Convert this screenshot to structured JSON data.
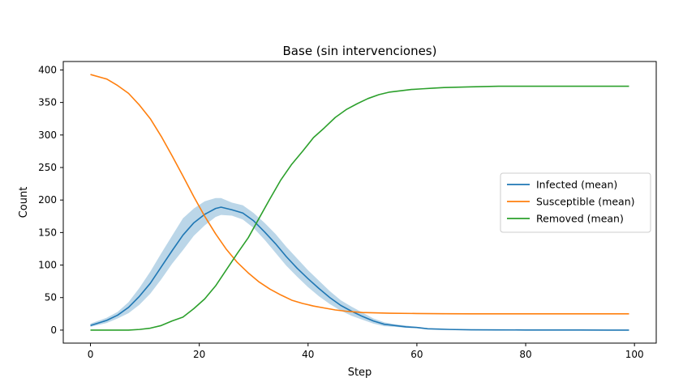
{
  "chart_data": {
    "type": "line",
    "title": "Base (sin intervenciones)",
    "xlabel": "Step",
    "ylabel": "Count",
    "xlim": [
      -5,
      104
    ],
    "ylim": [
      -20,
      413
    ],
    "xticks": [
      0,
      20,
      40,
      60,
      80,
      100
    ],
    "yticks": [
      0,
      50,
      100,
      150,
      200,
      250,
      300,
      350,
      400
    ],
    "grid": false,
    "legend_position": "center-right",
    "series": [
      {
        "name": "Infected (mean)",
        "color": "#1f77b4",
        "x": [
          0,
          3,
          5,
          7,
          9,
          11,
          13,
          15,
          17,
          19,
          21,
          23,
          24,
          26,
          28,
          30,
          32,
          34,
          36,
          38,
          40,
          42,
          44,
          46,
          48,
          50,
          52,
          54,
          56,
          58,
          60,
          62,
          64,
          66,
          70,
          75,
          80,
          85,
          90,
          95,
          99
        ],
        "values": [
          7,
          15,
          23,
          35,
          52,
          72,
          97,
          122,
          146,
          165,
          178,
          187,
          189,
          185,
          180,
          168,
          151,
          133,
          113,
          95,
          79,
          64,
          50,
          38,
          29,
          21,
          14,
          9,
          7,
          5,
          4,
          2,
          1.5,
          1,
          0.5,
          0.3,
          0.2,
          0.1,
          0.1,
          0,
          0
        ]
      },
      {
        "name": "Susceptible (mean)",
        "color": "#ff7f0e",
        "x": [
          0,
          3,
          5,
          7,
          9,
          11,
          13,
          15,
          17,
          19,
          21,
          23,
          25,
          27,
          29,
          31,
          33,
          35,
          37,
          39,
          41,
          43,
          45,
          47,
          50,
          55,
          60,
          65,
          70,
          80,
          90,
          99
        ],
        "values": [
          393,
          386,
          376,
          364,
          346,
          325,
          298,
          268,
          237,
          205,
          175,
          148,
          124,
          104,
          88,
          74,
          63,
          54,
          46,
          41,
          37,
          34,
          31,
          29,
          27,
          26,
          25.5,
          25.2,
          25,
          25,
          25,
          25
        ]
      },
      {
        "name": "Removed (mean)",
        "color": "#2ca02c",
        "x": [
          0,
          7,
          9,
          11,
          13,
          15,
          17,
          19,
          21,
          23,
          25,
          27,
          29,
          31,
          33,
          35,
          37,
          39,
          41,
          43,
          45,
          47,
          49,
          51,
          53,
          55,
          57,
          59,
          61,
          63,
          65,
          70,
          75,
          80,
          90,
          99
        ],
        "values": [
          0,
          0,
          1,
          3,
          7,
          14,
          20,
          33,
          48,
          68,
          93,
          118,
          142,
          172,
          202,
          231,
          255,
          275,
          296,
          311,
          327,
          339,
          348,
          356,
          362,
          366,
          368,
          370,
          371,
          372,
          373,
          374,
          375,
          375,
          375,
          375
        ]
      }
    ],
    "bands": [
      {
        "series": "Infected (mean)",
        "color": "#1f77b4",
        "opacity": 0.3,
        "x": [
          0,
          3,
          5,
          7,
          9,
          11,
          13,
          15,
          17,
          19,
          21,
          23,
          24,
          26,
          28,
          30,
          32,
          34,
          36,
          38,
          40,
          42,
          44,
          46,
          48,
          50,
          52,
          54,
          56,
          58,
          60,
          62,
          64,
          66,
          70,
          75,
          80,
          85,
          90,
          95,
          99
        ],
        "lower": [
          5,
          11,
          18,
          26,
          39,
          56,
          78,
          102,
          123,
          145,
          161,
          174,
          177,
          176,
          170,
          157,
          139,
          119,
          99,
          82,
          66,
          52,
          40,
          30,
          22,
          16,
          10,
          6,
          5,
          3.5,
          3,
          1.5,
          1,
          0.6,
          0.3,
          0.1,
          0,
          0,
          0,
          0,
          0
        ],
        "upper": [
          10,
          19,
          28,
          43,
          65,
          90,
          118,
          145,
          172,
          187,
          198,
          203,
          203,
          196,
          192,
          180,
          165,
          148,
          128,
          110,
          92,
          76,
          60,
          46,
          36,
          27,
          18,
          12,
          9,
          7,
          5,
          3,
          2,
          1.5,
          0.8,
          0.5,
          0.4,
          0.2,
          0.2,
          0.1,
          0.1
        ]
      }
    ]
  }
}
